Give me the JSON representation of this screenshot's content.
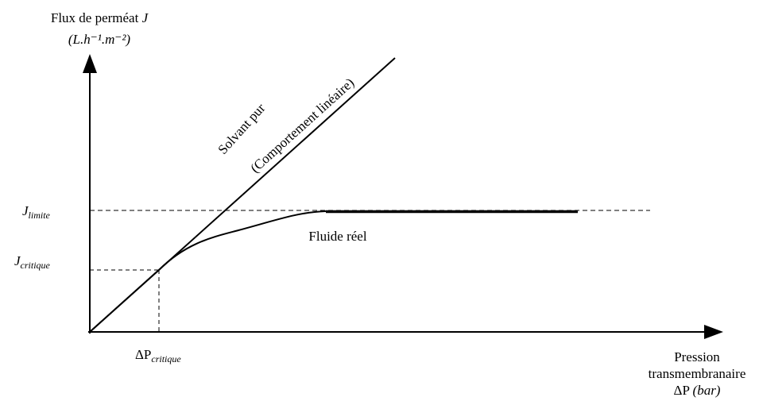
{
  "y_axis": {
    "title": "Flux de perméat",
    "symbol": "J",
    "unit": "(L.h⁻¹.m⁻²)"
  },
  "x_axis": {
    "line1": "Pression",
    "line2": "transmembranaire",
    "symbol": "ΔP",
    "unit": "(bar)"
  },
  "lines": {
    "solvent": {
      "label": "Solvant pur",
      "sublabel": "(Comportement linéaire)"
    },
    "real": {
      "label": "Fluide réel"
    }
  },
  "levels": {
    "limit": {
      "symbol": "J",
      "subscript": "limite"
    },
    "critical": {
      "symbol": "J",
      "subscript": "critique"
    },
    "critical_pressure": {
      "symbol": "ΔP",
      "subscript": "critique"
    }
  }
}
